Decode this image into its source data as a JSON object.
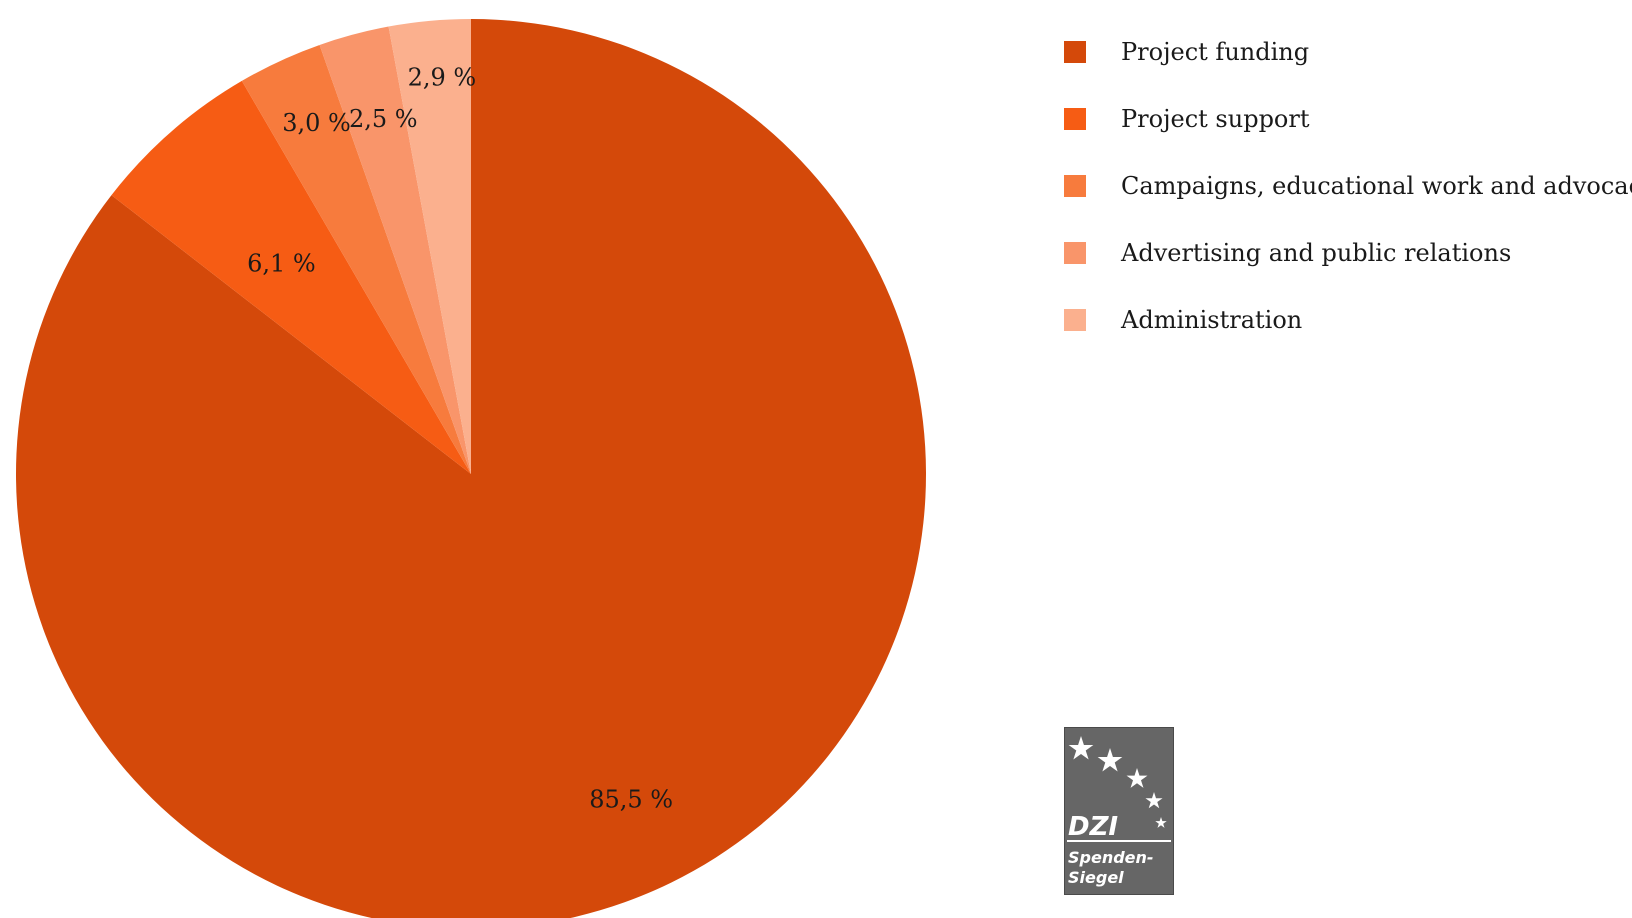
{
  "chart_data": {
    "type": "pie",
    "categories": [
      "Project funding",
      "Project support",
      "Campaigns, educational work and advocacy",
      "Advertising and public  relations",
      "Administration"
    ],
    "values": [
      85.5,
      6.1,
      3.0,
      2.5,
      2.9
    ],
    "value_labels": [
      "85,5 %",
      "6,1 %",
      "3,0 %",
      "2,5 %",
      "2,9 %"
    ],
    "colors": [
      "#d4490a",
      "#f65c14",
      "#f77b3d",
      "#f9956a",
      "#fbb08e"
    ],
    "start_angle": "12 o'clock",
    "direction": "clockwise",
    "legend_position": "top-right"
  },
  "legend": {
    "items": [
      {
        "label": "Project funding",
        "color": "#d4490a"
      },
      {
        "label": "Project support",
        "color": "#f65c14"
      },
      {
        "label": "Campaigns, educational work and advocacy",
        "color": "#f77b3d"
      },
      {
        "label": "Advertising and public  relations",
        "color": "#f9956a"
      },
      {
        "label": "Administration",
        "color": "#fbb08e"
      }
    ]
  },
  "seal": {
    "line1": "DZI",
    "line2": "Spenden-",
    "line3": "Siegel",
    "background": "#666666"
  }
}
